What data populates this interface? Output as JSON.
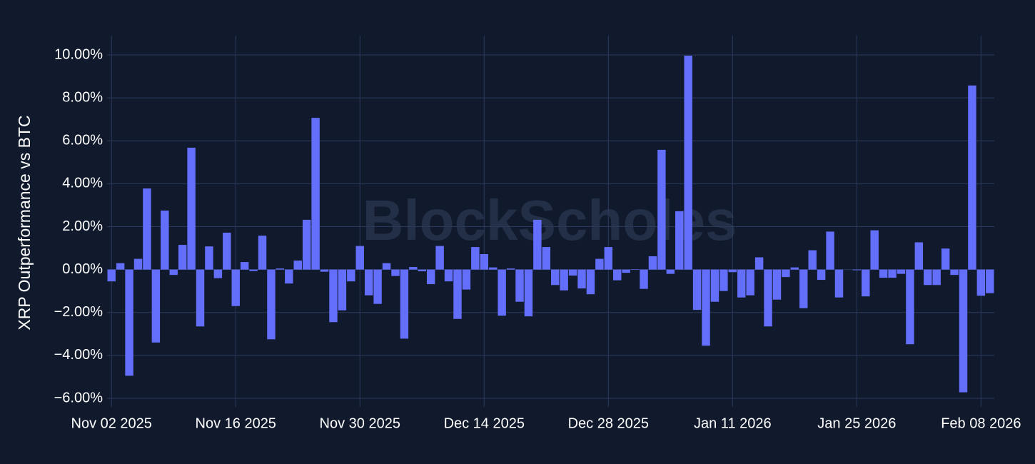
{
  "chart_data": {
    "type": "bar",
    "watermark": "BlockScholes",
    "y_label": "XRP Outperformance vs BTC",
    "color": "#636efa",
    "grid": true,
    "x": [
      "2025-11-02",
      "2025-11-03",
      "2025-11-04",
      "2025-11-05",
      "2025-11-06",
      "2025-11-07",
      "2025-11-08",
      "2025-11-09",
      "2025-11-10",
      "2025-11-11",
      "2025-11-12",
      "2025-11-13",
      "2025-11-14",
      "2025-11-15",
      "2025-11-16",
      "2025-11-17",
      "2025-11-18",
      "2025-11-19",
      "2025-11-20",
      "2025-11-21",
      "2025-11-22",
      "2025-11-23",
      "2025-11-24",
      "2025-11-25",
      "2025-11-26",
      "2025-11-27",
      "2025-11-28",
      "2025-11-29",
      "2025-11-30",
      "2025-12-01",
      "2025-12-02",
      "2025-12-03",
      "2025-12-04",
      "2025-12-05",
      "2025-12-06",
      "2025-12-07",
      "2025-12-08",
      "2025-12-09",
      "2025-12-10",
      "2025-12-11",
      "2025-12-12",
      "2025-12-13",
      "2025-12-14",
      "2025-12-15",
      "2025-12-16",
      "2025-12-17",
      "2025-12-18",
      "2025-12-19",
      "2025-12-20",
      "2025-12-21",
      "2025-12-22",
      "2025-12-23",
      "2025-12-24",
      "2025-12-25",
      "2025-12-26",
      "2025-12-27",
      "2025-12-28",
      "2025-12-29",
      "2025-12-30",
      "2025-12-31",
      "2026-01-01",
      "2026-01-02",
      "2026-01-03",
      "2026-01-04",
      "2026-01-05",
      "2026-01-06",
      "2026-01-07",
      "2026-01-08",
      "2026-01-09",
      "2026-01-10",
      "2026-01-11",
      "2026-01-12",
      "2026-01-13",
      "2026-01-14",
      "2026-01-15",
      "2026-01-16",
      "2026-01-17",
      "2026-01-18",
      "2026-01-19",
      "2026-01-20",
      "2026-01-21",
      "2026-01-22",
      "2026-01-23",
      "2026-01-24",
      "2026-01-25",
      "2026-01-26",
      "2026-01-27",
      "2026-01-28",
      "2026-01-29",
      "2026-01-30",
      "2026-01-31",
      "2026-02-01",
      "2026-02-02",
      "2026-02-03",
      "2026-02-04",
      "2026-02-05",
      "2026-02-06",
      "2026-02-07",
      "2026-02-08",
      "2026-02-09"
    ],
    "values": [
      -0.55,
      0.3,
      -4.95,
      0.5,
      3.78,
      -3.4,
      2.75,
      -0.25,
      1.15,
      5.68,
      -2.65,
      1.08,
      -0.4,
      1.72,
      -1.7,
      0.35,
      -0.07,
      1.58,
      -3.25,
      0.05,
      -0.65,
      0.42,
      2.32,
      7.07,
      -0.1,
      -2.45,
      -1.9,
      -0.55,
      1.1,
      -1.2,
      -1.6,
      0.3,
      -0.3,
      -3.22,
      0.12,
      -0.08,
      -0.68,
      1.1,
      -0.55,
      -2.3,
      -0.93,
      1.05,
      0.72,
      0.1,
      -2.15,
      0.05,
      -1.5,
      -2.18,
      2.32,
      1.05,
      -0.72,
      -0.97,
      -0.28,
      -0.88,
      -1.15,
      0.5,
      1.05,
      -0.5,
      -0.15,
      0.02,
      -0.9,
      0.62,
      5.58,
      -0.2,
      2.72,
      9.97,
      -1.88,
      -3.55,
      -1.5,
      -1.0,
      -0.12,
      -1.3,
      -1.2,
      0.57,
      -2.65,
      -1.4,
      -0.35,
      0.1,
      -1.8,
      0.9,
      -0.48,
      1.77,
      -1.3,
      0.0,
      -0.03,
      -1.25,
      1.83,
      -0.38,
      -0.38,
      -0.2,
      -3.48,
      1.27,
      -0.72,
      -0.72,
      0.98,
      -0.25,
      -5.72,
      8.58,
      -1.22,
      -1.1
    ],
    "xlim": [
      "2025-11-01T12:00:00Z",
      "2026-02-09T12:00:00Z"
    ],
    "xticks": [
      {
        "value": "2025-11-02",
        "label": "Nov 02 2025"
      },
      {
        "value": "2025-11-16",
        "label": "Nov 16 2025"
      },
      {
        "value": "2025-11-30",
        "label": "Nov 30 2025"
      },
      {
        "value": "2025-12-14",
        "label": "Dec 14 2025"
      },
      {
        "value": "2025-12-28",
        "label": "Dec 28 2025"
      },
      {
        "value": "2026-01-11",
        "label": "Jan 11 2026"
      },
      {
        "value": "2026-01-25",
        "label": "Jan 25 2026"
      },
      {
        "value": "2026-02-08",
        "label": "Feb 08 2026"
      }
    ],
    "ylim": [
      -6.4,
      10.9
    ],
    "yticks": [
      {
        "value": -6,
        "label": "−6.00%"
      },
      {
        "value": -4,
        "label": "−4.00%"
      },
      {
        "value": -2,
        "label": "−2.00%"
      },
      {
        "value": 0,
        "label": "0.00%"
      },
      {
        "value": 2,
        "label": "2.00%"
      },
      {
        "value": 4,
        "label": "4.00%"
      },
      {
        "value": 6,
        "label": "6.00%"
      },
      {
        "value": 8,
        "label": "8.00%"
      },
      {
        "value": 10,
        "label": "10.00%"
      }
    ]
  }
}
